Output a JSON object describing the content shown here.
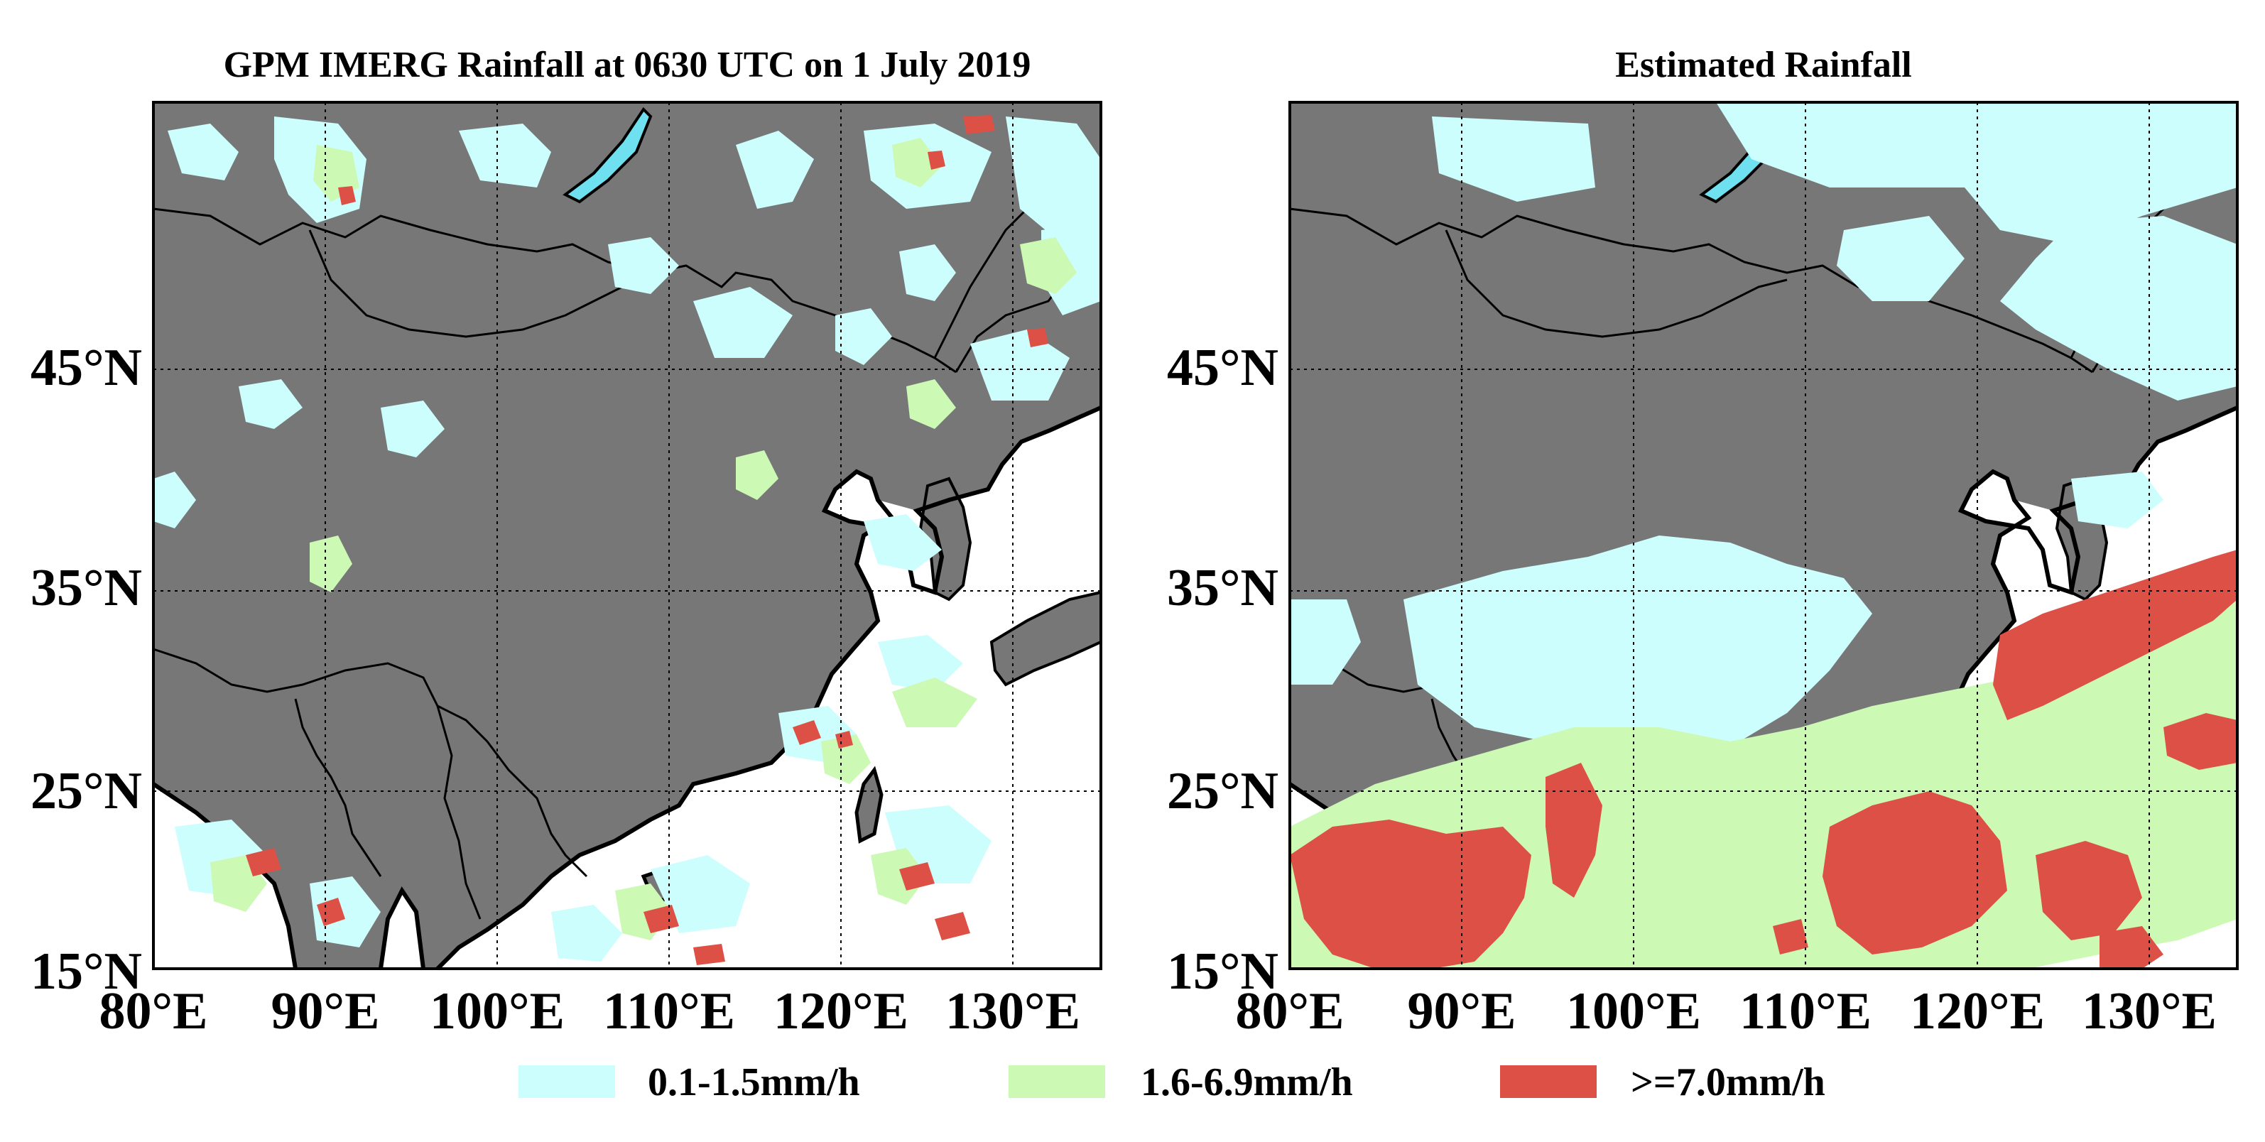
{
  "figure": {
    "panels": [
      {
        "title": "GPM IMERG Rainfall at 0630 UTC on 1 July 2019",
        "lat_labels": [
          "45°N",
          "35°N",
          "25°N",
          "15°N"
        ],
        "lon_labels": [
          "80°E",
          "90°E",
          "100°E",
          "110°E",
          "120°E",
          "130°E"
        ]
      },
      {
        "title": "Estimated Rainfall",
        "lat_labels": [
          "45°N",
          "35°N",
          "25°N",
          "15°N"
        ],
        "lon_labels": [
          "80°E",
          "90°E",
          "100°E",
          "110°E",
          "120°E",
          "130°E"
        ]
      }
    ],
    "legend": [
      {
        "label": "0.1-1.5mm/h",
        "color": "#ccfefe"
      },
      {
        "label": "1.6-6.9mm/h",
        "color": "#ccfab4"
      },
      {
        "label": ">=7.0mm/h",
        "color": "#dc5046"
      }
    ],
    "colors": {
      "land": "#777777",
      "ocean": "#ffffff",
      "light": "#ccfefe",
      "moderate": "#ccfab4",
      "heavy": "#dc5046",
      "lake": "#6fe0f0"
    }
  }
}
